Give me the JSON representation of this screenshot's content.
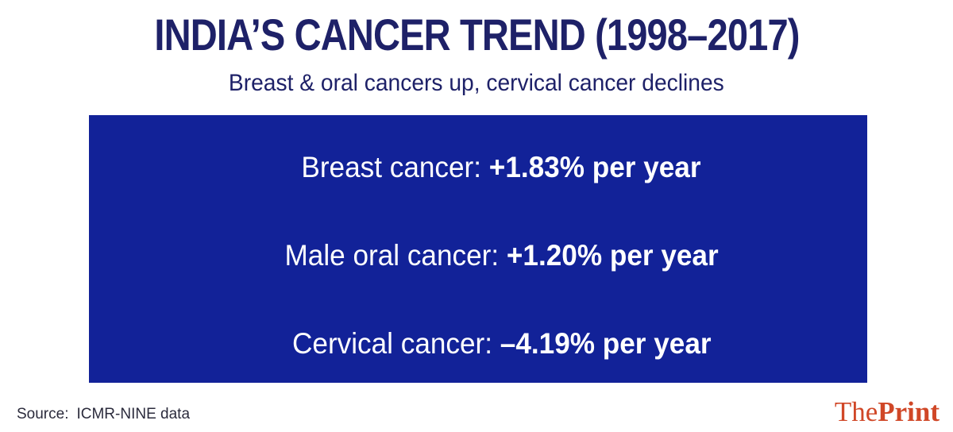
{
  "header": {
    "title": "INDIA’S CANCER TREND (1998–2017)",
    "subtitle": "Breast & oral cancers up, cervical cancer declines"
  },
  "panel": {
    "rows": [
      {
        "label": "Breast cancer: ",
        "value": "+1.83% per year"
      },
      {
        "label": "Male oral cancer: ",
        "value": "+1.20% per year"
      },
      {
        "label": "Cervical cancer: ",
        "value": "–4.19% per year"
      }
    ]
  },
  "footer": {
    "source_label": "Source:",
    "source_value": "ICMR-NINE data",
    "logo_part1": "The",
    "logo_part2": "Print"
  },
  "colors": {
    "navy": "#1e2168",
    "panel_blue": "#122298",
    "logo_orange": "#d04727",
    "text_white": "#ffffff"
  },
  "chart_data": {
    "type": "table",
    "title": "INDIA’S CANCER TREND (1998–2017)",
    "subtitle": "Breast & oral cancers up, cervical cancer declines",
    "categories": [
      "Breast cancer",
      "Male oral cancer",
      "Cervical cancer"
    ],
    "values": [
      1.83,
      1.2,
      -4.19
    ],
    "unit": "% per year",
    "source": "ICMR-NINE data"
  }
}
